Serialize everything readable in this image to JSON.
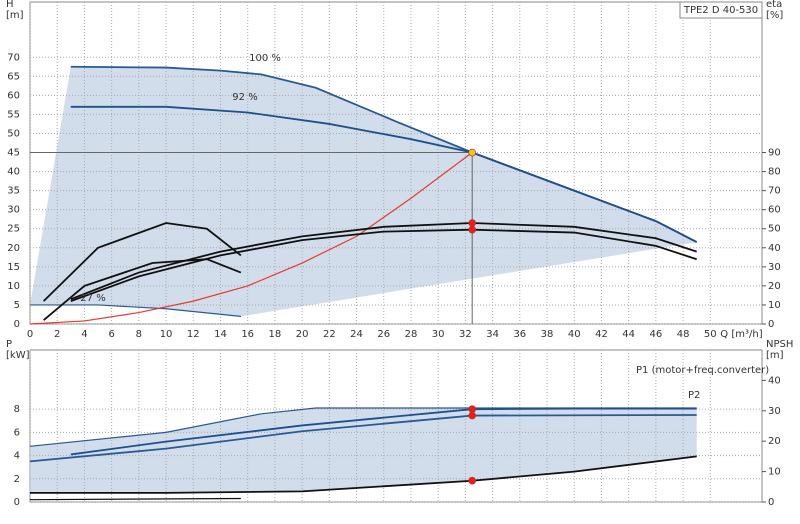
{
  "chart_data": [
    {
      "type": "line",
      "title": "TPE2 D 40-530",
      "ylabel": [
        "H",
        "[m]"
      ],
      "y2label": [
        "eta",
        "[%]"
      ],
      "xlabel": "Q [m³/h]",
      "xlim": [
        0,
        53.8
      ],
      "xticks": [
        0,
        2,
        4,
        6,
        8,
        10,
        12,
        14,
        16,
        18,
        20,
        22,
        24,
        26,
        28,
        30,
        32,
        34,
        36,
        38,
        40,
        42,
        44,
        46,
        48,
        50
      ],
      "ylim": [
        0,
        84.5
      ],
      "yticks": [
        0,
        5,
        10,
        15,
        20,
        25,
        30,
        35,
        40,
        45,
        50,
        55,
        60,
        65,
        70
      ],
      "y2lim": [
        0,
        169
      ],
      "y2ticks": [
        0,
        10,
        20,
        30,
        40,
        50,
        60,
        70,
        80,
        90
      ],
      "grid": true,
      "series": [
        {
          "name": "100 %",
          "color": "#2a5a96",
          "x": [
            3,
            10,
            14,
            17,
            21,
            27,
            32.5,
            40,
            46,
            49
          ],
          "values": [
            67.5,
            67.3,
            66.5,
            65.5,
            62,
            53,
            45,
            35,
            27,
            21.5
          ]
        },
        {
          "name": "92 %",
          "color": "#1f4f8f",
          "x": [
            3,
            10,
            16,
            22,
            28,
            32.5,
            40,
            46,
            49
          ],
          "values": [
            57,
            57,
            55.5,
            52.5,
            48.5,
            45,
            35,
            27,
            21.5
          ]
        },
        {
          "color": "#2a5a96",
          "x": [
            0,
            5,
            10,
            15.5
          ],
          "values": [
            5,
            5,
            4,
            2
          ]
        },
        {
          "color": "#e83a2e",
          "x": [
            0,
            4,
            8,
            12,
            16,
            20,
            24,
            28,
            32.5
          ],
          "values": [
            0,
            0.8,
            3,
            6,
            10,
            16,
            23,
            33,
            45
          ]
        },
        {
          "color": "#111111",
          "axis": "y2",
          "x": [
            3,
            8,
            14,
            20,
            26,
            32.5,
            40,
            46,
            49
          ],
          "values": [
            13,
            27,
            38,
            46,
            51,
            53,
            51,
            45,
            38
          ]
        },
        {
          "color": "#111111",
          "axis": "y2",
          "x": [
            3,
            8,
            14,
            20,
            26,
            32.5,
            40,
            46,
            49
          ],
          "values": [
            12,
            25,
            36,
            44,
            48.5,
            49.5,
            48,
            41,
            34
          ]
        },
        {
          "color": "#111111",
          "axis": "y2",
          "x": [
            1,
            4,
            9,
            13,
            15.5
          ],
          "values": [
            2,
            20,
            32,
            34,
            27
          ]
        },
        {
          "color": "#111111",
          "axis": "y2",
          "x": [
            1,
            5,
            10,
            13,
            15.5
          ],
          "values": [
            12,
            40,
            53,
            50,
            36
          ]
        }
      ],
      "annotations": [
        "27 %"
      ],
      "points": [
        {
          "x": 32.5,
          "y": 45,
          "color": "#f5c518"
        },
        {
          "x": 32.5,
          "y": 53,
          "axis": "y2",
          "color": "#e8201a"
        },
        {
          "x": 32.5,
          "y": 49.5,
          "axis": "y2",
          "color": "#e8201a"
        }
      ]
    },
    {
      "type": "line",
      "ylabel": [
        "P",
        "[kW]"
      ],
      "y2label": [
        "NPSH",
        "[m]"
      ],
      "xlim": [
        0,
        53.8
      ],
      "ylim": [
        0,
        13.1
      ],
      "yticks": [
        0,
        2,
        4,
        6,
        8
      ],
      "y2lim": [
        0,
        50
      ],
      "y2ticks": [
        0,
        10,
        20,
        30,
        40
      ],
      "grid": true,
      "series": [
        {
          "color": "#2a5a96",
          "x": [
            0,
            10,
            17,
            21,
            32.5,
            49
          ],
          "values": [
            4.8,
            6,
            7.6,
            8.1,
            8.1,
            8.1
          ]
        },
        {
          "name": "P1 (motor+freq.converter)",
          "color": "#1f4f8f",
          "x": [
            3,
            10,
            20,
            32.5,
            40,
            49
          ],
          "values": [
            4.1,
            5.2,
            6.6,
            8.0,
            8.05,
            8.05
          ]
        },
        {
          "name": "P2",
          "color": "#2a5a96",
          "x": [
            0,
            10,
            20,
            32.5,
            49
          ],
          "values": [
            3.5,
            4.6,
            6.1,
            7.45,
            7.5
          ]
        },
        {
          "color": "#111111",
          "axis": "y2",
          "x": [
            0,
            10,
            20,
            32.5,
            40,
            49
          ],
          "values": [
            3,
            3,
            3.5,
            7,
            10,
            15
          ]
        },
        {
          "color": "#111111",
          "x": [
            0,
            15.5
          ],
          "values": [
            0.2,
            0.3
          ]
        }
      ],
      "points": [
        {
          "x": 32.5,
          "y": 8.0,
          "color": "#e8201a"
        },
        {
          "x": 32.5,
          "y": 7.45,
          "color": "#e8201a"
        },
        {
          "x": 32.5,
          "y": 7,
          "axis": "y2",
          "color": "#e8201a"
        }
      ]
    }
  ]
}
